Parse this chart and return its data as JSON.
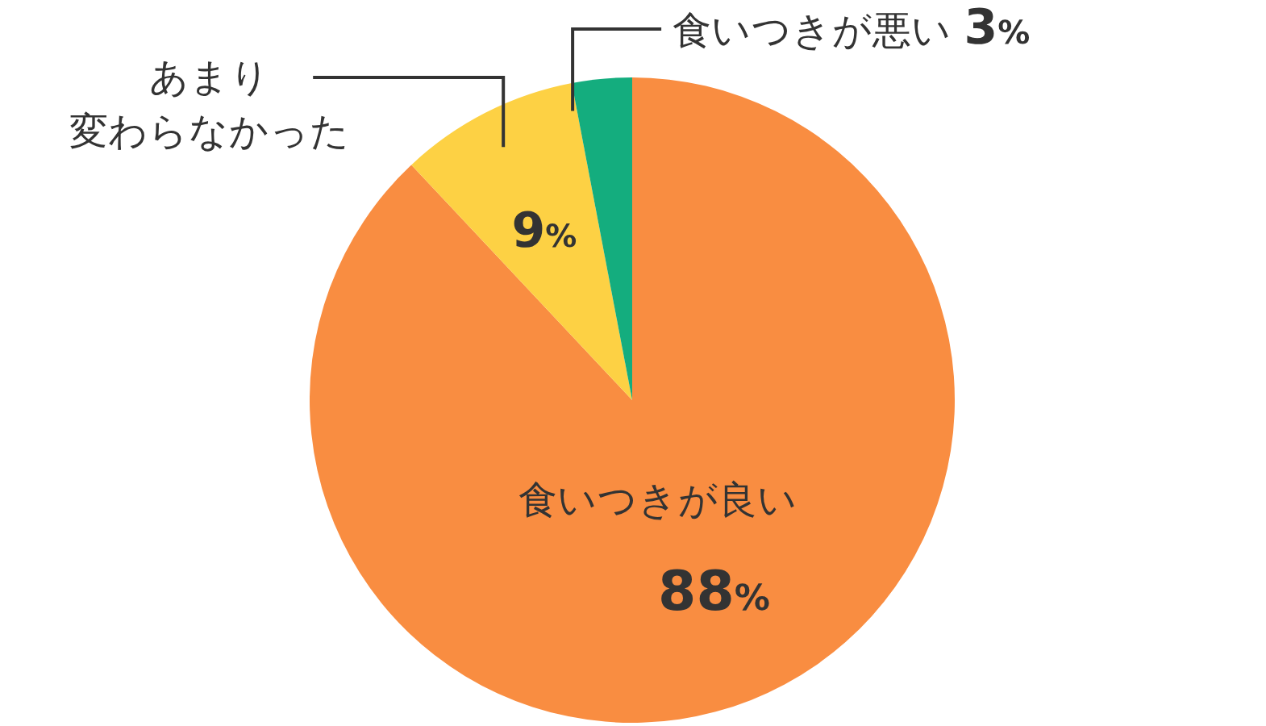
{
  "chart_data": {
    "type": "pie",
    "categories": [
      "食いつきが良い",
      "あまり変わらなかった",
      "食いつきが悪い"
    ],
    "values": [
      88,
      9,
      3
    ],
    "colors": [
      "#f98d41",
      "#fdd144",
      "#14ad7e"
    ],
    "value_labels": [
      "88%",
      "9%",
      "3%"
    ],
    "legend": false
  }
}
